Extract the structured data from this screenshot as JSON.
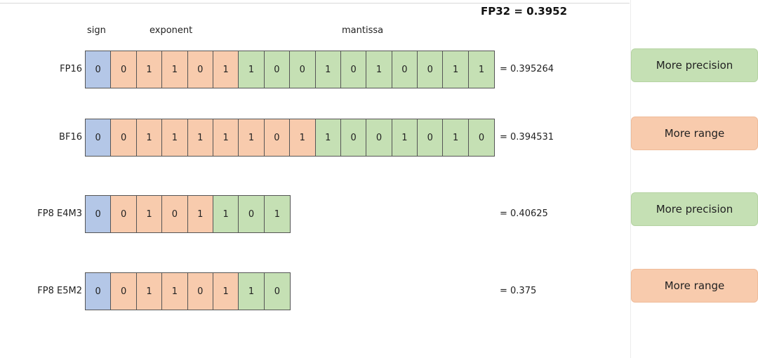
{
  "headline": "FP32 = 0.3952",
  "headers": {
    "sign": "sign",
    "exponent": "exponent",
    "mantissa": "mantissa"
  },
  "colors": {
    "sign": "#b4c7e7",
    "exponent": "#f8cbad",
    "mantissa": "#c5e0b4"
  },
  "rows": [
    {
      "label": "FP16",
      "sign": [
        "0"
      ],
      "exponent": [
        "0",
        "1",
        "1",
        "0",
        "1"
      ],
      "mantissa": [
        "1",
        "0",
        "0",
        "1",
        "0",
        "1",
        "0",
        "0",
        "1",
        "1"
      ],
      "value": "= 0.395264",
      "tag": "More precision",
      "tag_color": "green"
    },
    {
      "label": "BF16",
      "sign": [
        "0"
      ],
      "exponent": [
        "0",
        "1",
        "1",
        "1",
        "1",
        "1",
        "0",
        "1"
      ],
      "mantissa": [
        "1",
        "0",
        "0",
        "1",
        "0",
        "1",
        "0"
      ],
      "value": "= 0.394531",
      "tag": "More range",
      "tag_color": "orange"
    },
    {
      "label": "FP8 E4M3",
      "sign": [
        "0"
      ],
      "exponent": [
        "0",
        "1",
        "0",
        "1"
      ],
      "mantissa": [
        "1",
        "0",
        "1"
      ],
      "value": "= 0.40625",
      "tag": "More precision",
      "tag_color": "green"
    },
    {
      "label": "FP8 E5M2",
      "sign": [
        "0"
      ],
      "exponent": [
        "0",
        "1",
        "1",
        "0",
        "1"
      ],
      "mantissa": [
        "1",
        "0"
      ],
      "value": "= 0.375",
      "tag": "More range",
      "tag_color": "orange"
    }
  ]
}
